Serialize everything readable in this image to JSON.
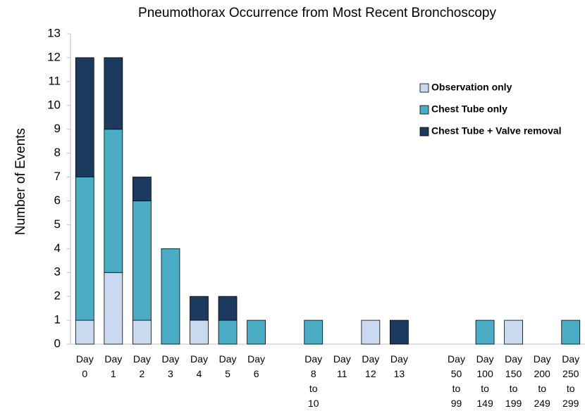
{
  "chart_data": {
    "type": "stacked-bar",
    "title": "Pneumothorax Occurrence from Most Recent Bronchoscopy",
    "y_label": "Number of Events",
    "categories": [
      "Day 0",
      "Day 1",
      "Day 2",
      "Day 3",
      "Day 4",
      "Day 5",
      "Day 6",
      null,
      "Day 8 to 10",
      "Day 11",
      "Day 12",
      "Day 13",
      null,
      "Day 50 to 99",
      "Day 100 to 149",
      "Day 150 to 199",
      "Day 200 to 249",
      "Day 250 to 299"
    ],
    "series": [
      {
        "name": "Observation only",
        "color": "#c9d9f0",
        "values": [
          1,
          3,
          1,
          0,
          1,
          0,
          0,
          null,
          0,
          0,
          1,
          0,
          null,
          0,
          0,
          1,
          0,
          0
        ]
      },
      {
        "name": "Chest Tube only",
        "color": "#4bacc6",
        "values": [
          6,
          6,
          5,
          4,
          0,
          1,
          1,
          null,
          1,
          0,
          0,
          0,
          null,
          0,
          1,
          0,
          0,
          1
        ]
      },
      {
        "name": "Chest Tube + Valve removal",
        "color": "#1c3a5e",
        "values": [
          5,
          3,
          1,
          0,
          1,
          1,
          0,
          null,
          0,
          0,
          0,
          1,
          null,
          0,
          0,
          0,
          0,
          0
        ]
      }
    ],
    "ylim": [
      0,
      13
    ],
    "yticks": [
      0,
      1,
      2,
      3,
      4,
      5,
      6,
      7,
      8,
      9,
      10,
      11,
      12,
      13
    ],
    "grid": false,
    "legend": "top-right"
  }
}
